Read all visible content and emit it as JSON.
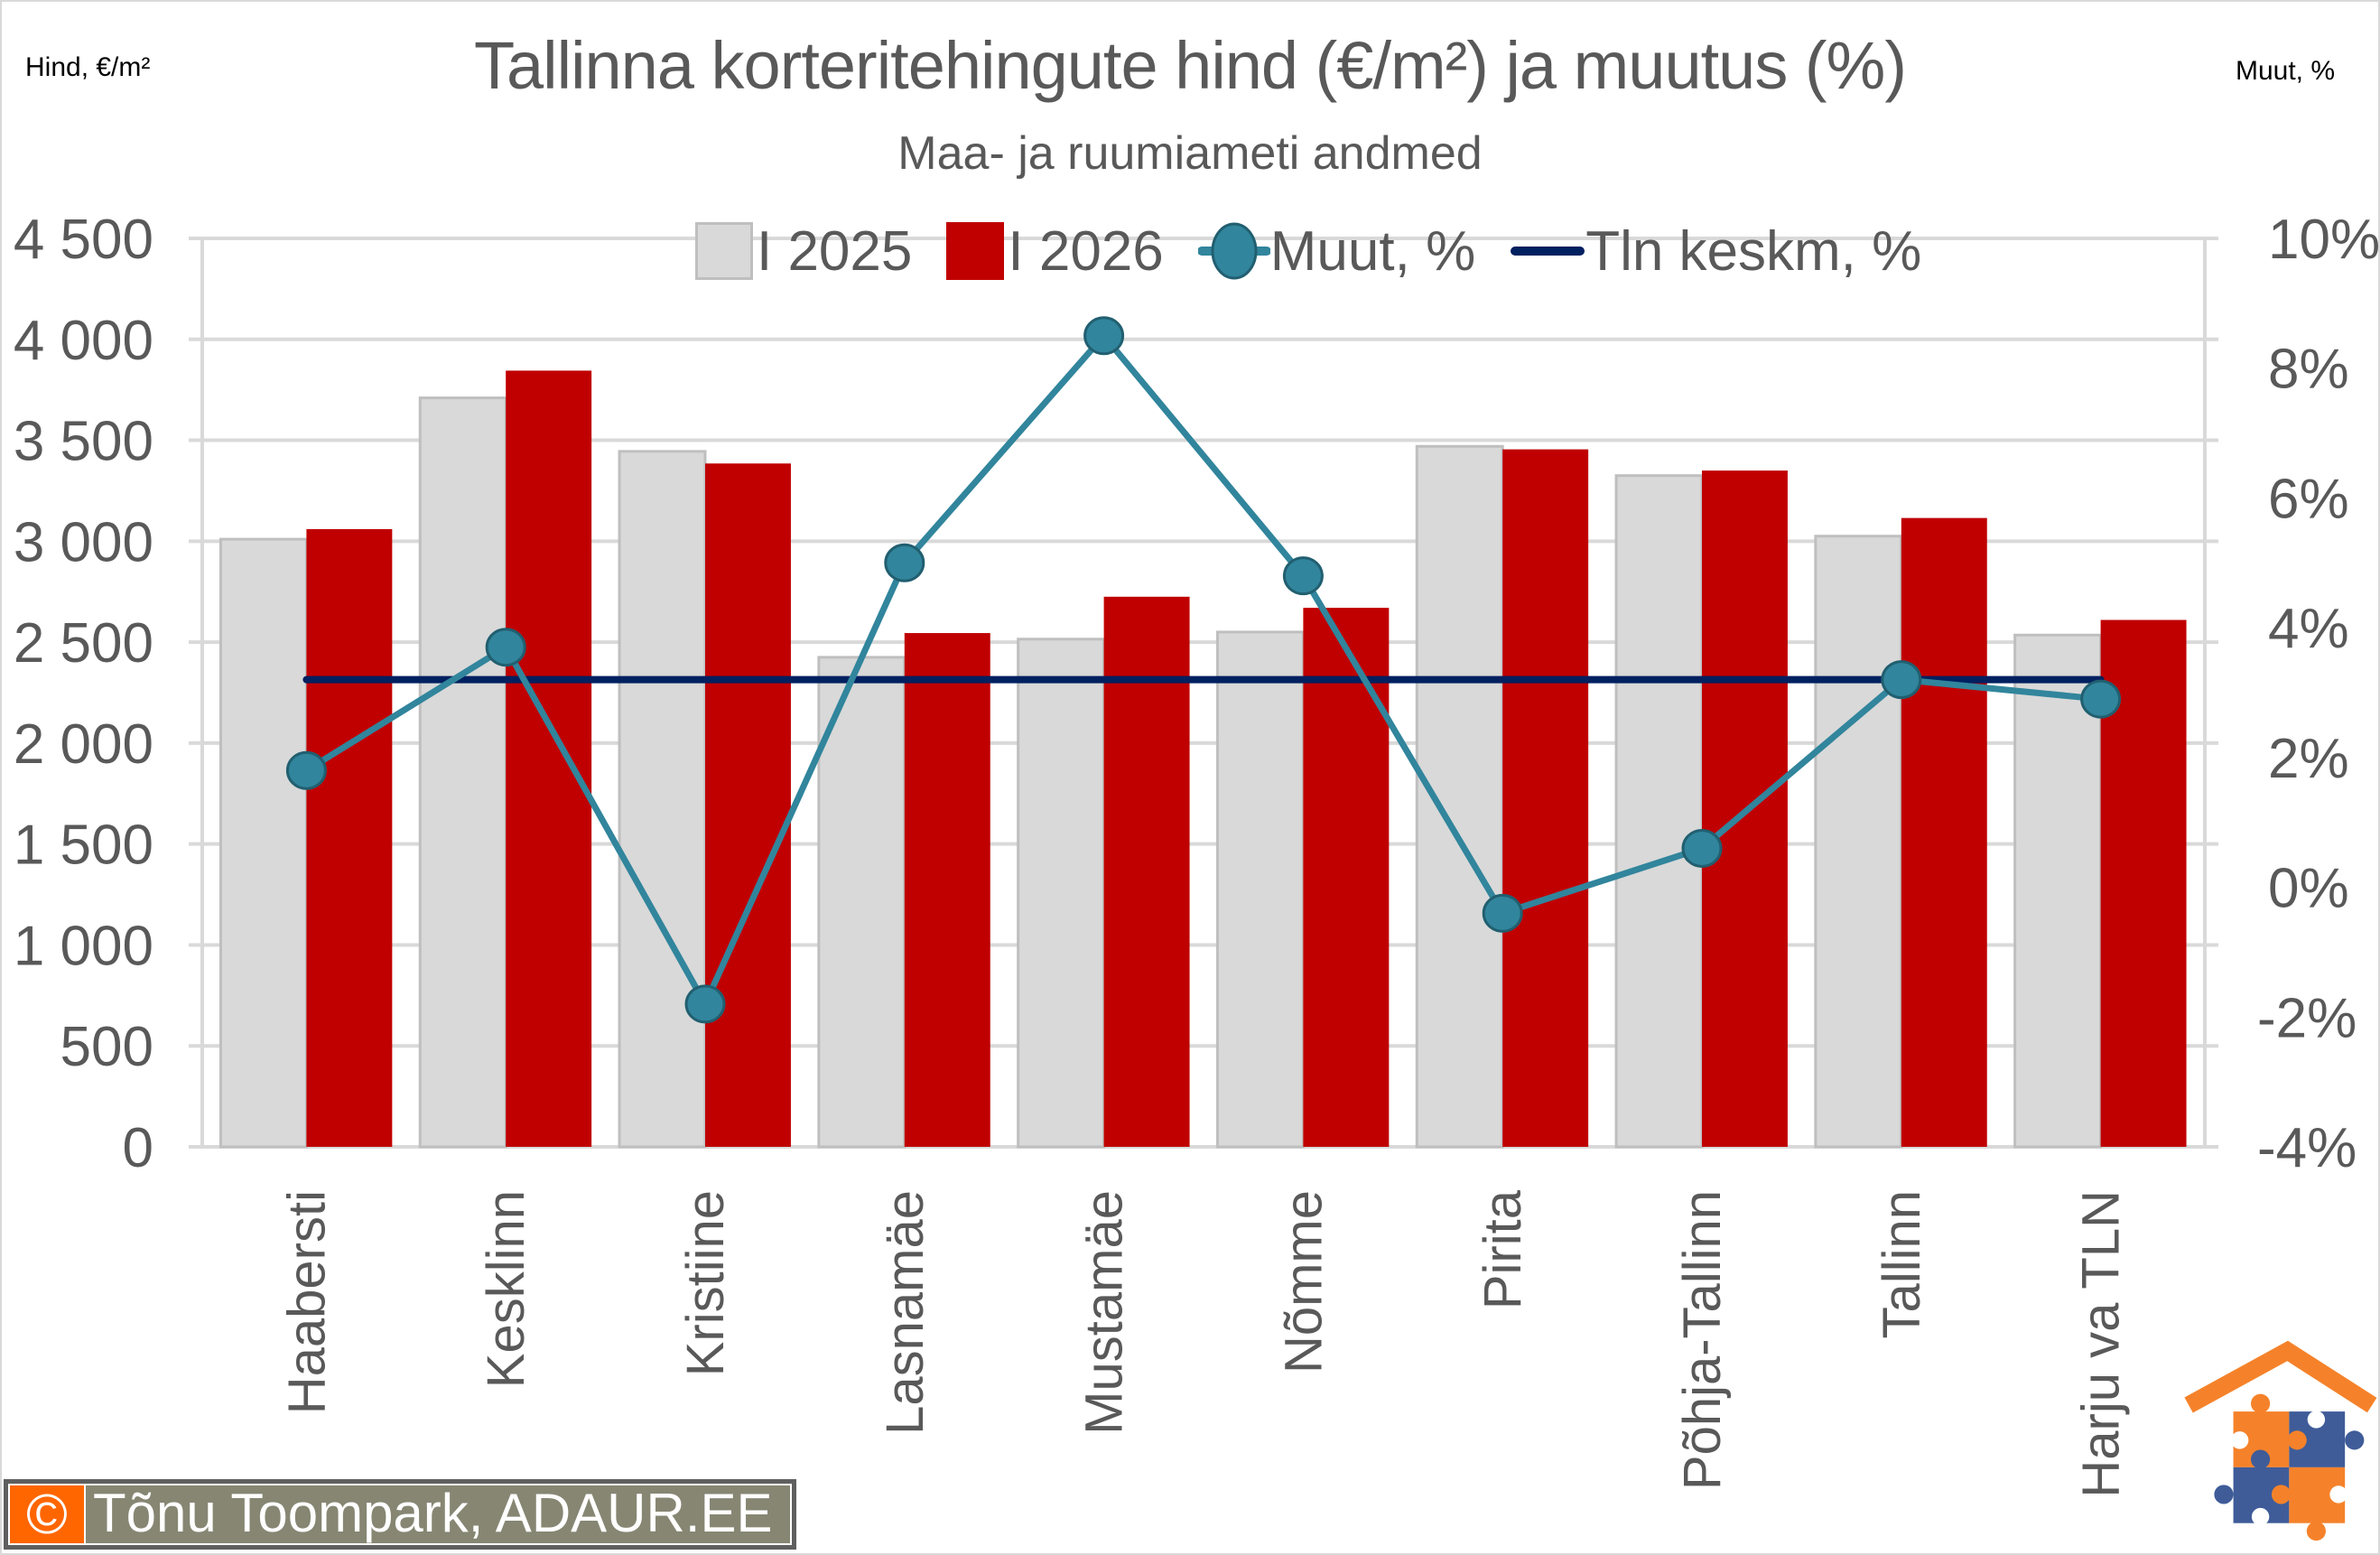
{
  "header": {
    "title": "Tallinna korteritehingute hind (€/m²) ja muutus (%)",
    "subtitle": "Maa- ja ruumiameti andmed",
    "left_axis_title": "Hind, €/m²",
    "right_axis_title": "Muut, %"
  },
  "legend": {
    "items": [
      {
        "label": "I 2025",
        "type": "bar",
        "color": "#d9d9d9"
      },
      {
        "label": "I 2026",
        "type": "bar",
        "color": "#c00000"
      },
      {
        "label": "Muut, %",
        "type": "line-marker",
        "color": "#31859c"
      },
      {
        "label": "Tln keskm, %",
        "type": "line",
        "color": "#002060"
      }
    ]
  },
  "footer": {
    "copyright_symbol": "©",
    "copyright_text": "Tõnu Toompark, ADAUR.EE"
  },
  "logo": {
    "name": "adaur-house-puzzle-logo",
    "colors": [
      "#f5822a",
      "#3f5c99"
    ]
  },
  "chart_data": {
    "type": "bar",
    "title": "Tallinna korteritehingute hind (€/m²) ja muutus (%)",
    "subtitle": "Maa- ja ruumiameti andmed",
    "xlabel": "",
    "ylabel": "Hind, €/m²",
    "y2label": "Muut, %",
    "ylim": [
      0,
      4500
    ],
    "y2lim": [
      -4,
      10
    ],
    "yticks": [
      "0",
      "500",
      "1 000",
      "1 500",
      "2 000",
      "2 500",
      "3 000",
      "3 500",
      "4 000",
      "4 500"
    ],
    "y2ticks": [
      "-4%",
      "-2%",
      "0%",
      "2%",
      "4%",
      "6%",
      "8%",
      "10%"
    ],
    "grid": true,
    "legend_position": "top",
    "categories": [
      "Haabersti",
      "Kesklinn",
      "Kristiine",
      "Lasnamäe",
      "Mustamäe",
      "Nõmme",
      "Pirita",
      "Põhja-Tallinn",
      "Tallinn",
      "Harju va TLN"
    ],
    "series": [
      {
        "name": "I 2025",
        "type": "bar",
        "axis": "left",
        "color": "#d9d9d9",
        "values": [
          3010,
          3710,
          3445,
          2425,
          2515,
          2550,
          3470,
          3325,
          3025,
          2535
        ]
      },
      {
        "name": "I 2026",
        "type": "bar",
        "axis": "left",
        "color": "#c00000",
        "values": [
          3060,
          3845,
          3385,
          2545,
          2725,
          2670,
          3455,
          3350,
          3115,
          2610
        ]
      },
      {
        "name": "Muut, %",
        "type": "line",
        "axis": "right",
        "color": "#31859c",
        "values": [
          1.8,
          3.7,
          -1.8,
          5.0,
          8.5,
          4.8,
          -0.4,
          0.6,
          3.2,
          2.9
        ]
      },
      {
        "name": "Tln keskm, %",
        "type": "line",
        "axis": "right",
        "color": "#002060",
        "values": [
          3.2,
          3.2,
          3.2,
          3.2,
          3.2,
          3.2,
          3.2,
          3.2,
          3.2,
          3.2
        ]
      }
    ]
  }
}
